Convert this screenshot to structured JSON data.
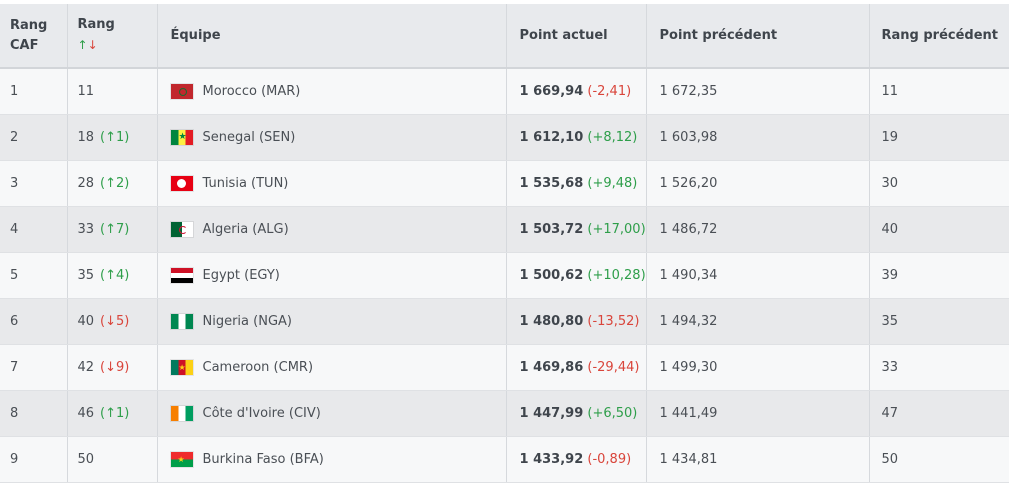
{
  "header": {
    "rang_caf": "Rang\nCAF",
    "rang_caf_l1": "Rang",
    "rang_caf_l2": "CAF",
    "rang": "Rang",
    "rang_sort_up": "↑",
    "rang_sort_down": "↓",
    "equipe": "Équipe",
    "point_actuel": "Point actuel",
    "point_precedent": "Point précédent",
    "rang_precedent": "Rang précédent"
  },
  "rows": [
    {
      "caf": "1",
      "rang": "11",
      "change": "",
      "dir": "",
      "team": "Morocco (MAR)",
      "flag": "flag-mar",
      "pts": "1 669,94",
      "delta": "(-2,41)",
      "delta_dir": "down",
      "prev_pts": "1 672,35",
      "prev_rank": "11"
    },
    {
      "caf": "2",
      "rang": "18",
      "change": "(↑1)",
      "dir": "up",
      "team": "Senegal (SEN)",
      "flag": "flag-sen",
      "pts": "1 612,10",
      "delta": "(+8,12)",
      "delta_dir": "up",
      "prev_pts": "1 603,98",
      "prev_rank": "19"
    },
    {
      "caf": "3",
      "rang": "28",
      "change": "(↑2)",
      "dir": "up",
      "team": "Tunisia (TUN)",
      "flag": "flag-tun",
      "pts": "1 535,68",
      "delta": "(+9,48)",
      "delta_dir": "up",
      "prev_pts": "1 526,20",
      "prev_rank": "30"
    },
    {
      "caf": "4",
      "rang": "33",
      "change": "(↑7)",
      "dir": "up",
      "team": "Algeria (ALG)",
      "flag": "flag-alg",
      "pts": "1 503,72",
      "delta": "(+17,00)",
      "delta_dir": "up",
      "prev_pts": "1 486,72",
      "prev_rank": "40"
    },
    {
      "caf": "5",
      "rang": "35",
      "change": "(↑4)",
      "dir": "up",
      "team": "Egypt (EGY)",
      "flag": "flag-egy",
      "pts": "1 500,62",
      "delta": "(+10,28)",
      "delta_dir": "up",
      "prev_pts": "1 490,34",
      "prev_rank": "39"
    },
    {
      "caf": "6",
      "rang": "40",
      "change": "(↓5)",
      "dir": "down",
      "team": "Nigeria (NGA)",
      "flag": "flag-nga",
      "pts": "1 480,80",
      "delta": "(-13,52)",
      "delta_dir": "down",
      "prev_pts": "1 494,32",
      "prev_rank": "35"
    },
    {
      "caf": "7",
      "rang": "42",
      "change": "(↓9)",
      "dir": "down",
      "team": "Cameroon (CMR)",
      "flag": "flag-cmr",
      "pts": "1 469,86",
      "delta": "(-29,44)",
      "delta_dir": "down",
      "prev_pts": "1 499,30",
      "prev_rank": "33"
    },
    {
      "caf": "8",
      "rang": "46",
      "change": "(↑1)",
      "dir": "up",
      "team": "Côte d'Ivoire (CIV)",
      "flag": "flag-civ",
      "pts": "1 447,99",
      "delta": "(+6,50)",
      "delta_dir": "up",
      "prev_pts": "1 441,49",
      "prev_rank": "47"
    },
    {
      "caf": "9",
      "rang": "50",
      "change": "",
      "dir": "",
      "team": "Burkina Faso (BFA)",
      "flag": "flag-bfa",
      "pts": "1 433,92",
      "delta": "(-0,89)",
      "delta_dir": "down",
      "prev_pts": "1 434,81",
      "prev_rank": "50"
    }
  ]
}
